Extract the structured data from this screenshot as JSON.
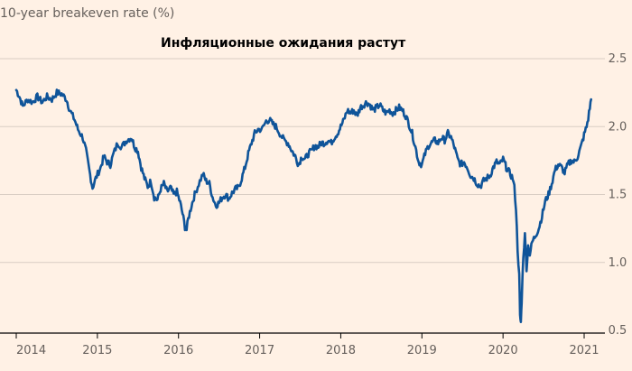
{
  "chart_data": {
    "type": "line",
    "title": "Инфляционные ожидания растут",
    "ylabel": "10-year breakeven rate (%)",
    "xlabel": "",
    "x_ticks": [
      "2014",
      "2015",
      "2016",
      "2017",
      "2018",
      "2019",
      "2020",
      "2021"
    ],
    "y_ticks": [
      "0.5",
      "1.0",
      "1.5",
      "2.0",
      "2.5"
    ],
    "ylim": [
      0.5,
      2.5
    ],
    "xlim": [
      2014.0,
      2021.1
    ],
    "grid": true,
    "colors": {
      "line": "#0f5499",
      "grid": "#d9cdc3",
      "axis": "#000000",
      "background": "#fff1e5"
    },
    "series": [
      {
        "name": "10-year breakeven rate",
        "points": [
          [
            2014.0,
            2.27
          ],
          [
            2014.04,
            2.22
          ],
          [
            2014.08,
            2.15
          ],
          [
            2014.14,
            2.2
          ],
          [
            2014.2,
            2.18
          ],
          [
            2014.26,
            2.22
          ],
          [
            2014.32,
            2.18
          ],
          [
            2014.38,
            2.22
          ],
          [
            2014.44,
            2.2
          ],
          [
            2014.5,
            2.25
          ],
          [
            2014.56,
            2.24
          ],
          [
            2014.62,
            2.2
          ],
          [
            2014.66,
            2.12
          ],
          [
            2014.72,
            2.05
          ],
          [
            2014.76,
            1.98
          ],
          [
            2014.82,
            1.92
          ],
          [
            2014.86,
            1.82
          ],
          [
            2014.9,
            1.68
          ],
          [
            2014.94,
            1.55
          ],
          [
            2014.98,
            1.62
          ],
          [
            2015.04,
            1.7
          ],
          [
            2015.08,
            1.78
          ],
          [
            2015.12,
            1.74
          ],
          [
            2015.16,
            1.72
          ],
          [
            2015.2,
            1.8
          ],
          [
            2015.25,
            1.88
          ],
          [
            2015.3,
            1.85
          ],
          [
            2015.36,
            1.9
          ],
          [
            2015.42,
            1.92
          ],
          [
            2015.46,
            1.85
          ],
          [
            2015.5,
            1.82
          ],
          [
            2015.54,
            1.7
          ],
          [
            2015.58,
            1.62
          ],
          [
            2015.62,
            1.56
          ],
          [
            2015.66,
            1.6
          ],
          [
            2015.7,
            1.48
          ],
          [
            2015.74,
            1.46
          ],
          [
            2015.78,
            1.54
          ],
          [
            2015.82,
            1.58
          ],
          [
            2015.86,
            1.52
          ],
          [
            2015.9,
            1.55
          ],
          [
            2015.94,
            1.5
          ],
          [
            2015.98,
            1.52
          ],
          [
            2016.02,
            1.44
          ],
          [
            2016.05,
            1.36
          ],
          [
            2016.08,
            1.26
          ],
          [
            2016.1,
            1.24
          ],
          [
            2016.12,
            1.32
          ],
          [
            2016.16,
            1.42
          ],
          [
            2016.2,
            1.5
          ],
          [
            2016.25,
            1.58
          ],
          [
            2016.3,
            1.65
          ],
          [
            2016.34,
            1.6
          ],
          [
            2016.38,
            1.58
          ],
          [
            2016.42,
            1.48
          ],
          [
            2016.46,
            1.42
          ],
          [
            2016.5,
            1.44
          ],
          [
            2016.54,
            1.48
          ],
          [
            2016.58,
            1.5
          ],
          [
            2016.62,
            1.47
          ],
          [
            2016.66,
            1.51
          ],
          [
            2016.7,
            1.54
          ],
          [
            2016.74,
            1.55
          ],
          [
            2016.78,
            1.62
          ],
          [
            2016.82,
            1.7
          ],
          [
            2016.86,
            1.8
          ],
          [
            2016.9,
            1.88
          ],
          [
            2016.94,
            1.95
          ],
          [
            2016.98,
            1.98
          ],
          [
            2017.03,
            1.98
          ],
          [
            2017.08,
            2.04
          ],
          [
            2017.12,
            2.05
          ],
          [
            2017.16,
            2.02
          ],
          [
            2017.2,
            2.0
          ],
          [
            2017.25,
            1.95
          ],
          [
            2017.3,
            1.9
          ],
          [
            2017.35,
            1.88
          ],
          [
            2017.4,
            1.82
          ],
          [
            2017.44,
            1.78
          ],
          [
            2017.48,
            1.72
          ],
          [
            2017.52,
            1.78
          ],
          [
            2017.56,
            1.76
          ],
          [
            2017.6,
            1.8
          ],
          [
            2017.64,
            1.82
          ],
          [
            2017.68,
            1.86
          ],
          [
            2017.72,
            1.85
          ],
          [
            2017.76,
            1.88
          ],
          [
            2017.8,
            1.88
          ],
          [
            2017.84,
            1.9
          ],
          [
            2017.88,
            1.88
          ],
          [
            2017.92,
            1.92
          ],
          [
            2017.96,
            1.95
          ],
          [
            2018.0,
            2.0
          ],
          [
            2018.04,
            2.05
          ],
          [
            2018.08,
            2.12
          ],
          [
            2018.12,
            2.1
          ],
          [
            2018.16,
            2.12
          ],
          [
            2018.2,
            2.08
          ],
          [
            2018.24,
            2.14
          ],
          [
            2018.28,
            2.16
          ],
          [
            2018.32,
            2.18
          ],
          [
            2018.36,
            2.16
          ],
          [
            2018.4,
            2.12
          ],
          [
            2018.44,
            2.14
          ],
          [
            2018.48,
            2.16
          ],
          [
            2018.52,
            2.12
          ],
          [
            2018.56,
            2.1
          ],
          [
            2018.6,
            2.12
          ],
          [
            2018.64,
            2.1
          ],
          [
            2018.68,
            2.12
          ],
          [
            2018.72,
            2.14
          ],
          [
            2018.76,
            2.12
          ],
          [
            2018.8,
            2.08
          ],
          [
            2018.84,
            2.02
          ],
          [
            2018.88,
            1.95
          ],
          [
            2018.92,
            1.85
          ],
          [
            2018.96,
            1.74
          ],
          [
            2019.0,
            1.72
          ],
          [
            2019.04,
            1.8
          ],
          [
            2019.08,
            1.86
          ],
          [
            2019.12,
            1.88
          ],
          [
            2019.16,
            1.9
          ],
          [
            2019.2,
            1.88
          ],
          [
            2019.24,
            1.92
          ],
          [
            2019.28,
            1.9
          ],
          [
            2019.32,
            1.95
          ],
          [
            2019.36,
            1.92
          ],
          [
            2019.4,
            1.85
          ],
          [
            2019.44,
            1.76
          ],
          [
            2019.48,
            1.72
          ],
          [
            2019.52,
            1.74
          ],
          [
            2019.56,
            1.7
          ],
          [
            2019.6,
            1.64
          ],
          [
            2019.64,
            1.62
          ],
          [
            2019.68,
            1.58
          ],
          [
            2019.72,
            1.56
          ],
          [
            2019.76,
            1.6
          ],
          [
            2019.8,
            1.62
          ],
          [
            2019.84,
            1.64
          ],
          [
            2019.88,
            1.7
          ],
          [
            2019.92,
            1.74
          ],
          [
            2019.96,
            1.72
          ],
          [
            2020.0,
            1.76
          ],
          [
            2020.04,
            1.7
          ],
          [
            2020.08,
            1.66
          ],
          [
            2020.12,
            1.62
          ],
          [
            2020.14,
            1.55
          ],
          [
            2020.16,
            1.4
          ],
          [
            2020.18,
            1.1
          ],
          [
            2020.2,
            0.9
          ],
          [
            2020.21,
            0.6
          ],
          [
            2020.22,
            0.56
          ],
          [
            2020.23,
            0.72
          ],
          [
            2020.25,
            1.05
          ],
          [
            2020.27,
            1.2
          ],
          [
            2020.29,
            0.96
          ],
          [
            2020.31,
            1.12
          ],
          [
            2020.33,
            1.06
          ],
          [
            2020.36,
            1.15
          ],
          [
            2020.4,
            1.2
          ],
          [
            2020.44,
            1.25
          ],
          [
            2020.48,
            1.34
          ],
          [
            2020.52,
            1.45
          ],
          [
            2020.56,
            1.5
          ],
          [
            2020.6,
            1.58
          ],
          [
            2020.64,
            1.68
          ],
          [
            2020.68,
            1.72
          ],
          [
            2020.72,
            1.7
          ],
          [
            2020.76,
            1.66
          ],
          [
            2020.8,
            1.72
          ],
          [
            2020.84,
            1.75
          ],
          [
            2020.88,
            1.74
          ],
          [
            2020.92,
            1.78
          ],
          [
            2020.96,
            1.85
          ],
          [
            2021.0,
            1.94
          ],
          [
            2021.03,
            2.0
          ],
          [
            2021.05,
            2.06
          ],
          [
            2021.07,
            2.14
          ],
          [
            2021.085,
            2.2
          ]
        ]
      }
    ]
  }
}
